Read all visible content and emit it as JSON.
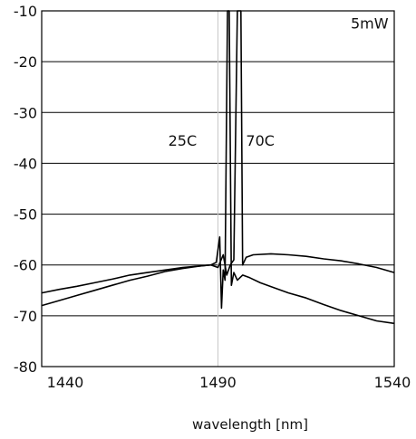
{
  "chart_data": {
    "type": "line",
    "title": "",
    "xlabel": "wavelength [nm]",
    "ylabel": "",
    "xlim": [
      1440,
      1540
    ],
    "ylim": [
      -80,
      -10
    ],
    "x_ticks": [
      1440,
      1490,
      1540
    ],
    "y_ticks": [
      -10,
      -20,
      -30,
      -40,
      -50,
      -60,
      -70,
      -80
    ],
    "grid": true,
    "reference_line_x": 1490,
    "annotations": [
      {
        "text": "5mW",
        "x": 1533,
        "y": -13.5
      },
      {
        "text": "25C",
        "x": 1484,
        "y": -36.5
      },
      {
        "text": "70C",
        "x": 1502,
        "y": -36.5
      }
    ],
    "series": [
      {
        "points": [
          [
            1440,
            -68.0
          ],
          [
            1445,
            -67.0
          ],
          [
            1450,
            -66.0
          ],
          [
            1455,
            -65.0
          ],
          [
            1460,
            -64.0
          ],
          [
            1465,
            -63.0
          ],
          [
            1470,
            -62.2
          ],
          [
            1475,
            -61.3
          ],
          [
            1480,
            -60.7
          ],
          [
            1485,
            -60.2
          ],
          [
            1488,
            -60.0
          ],
          [
            1489.5,
            -59.5
          ],
          [
            1490.5,
            -54.5
          ],
          [
            1491,
            -68.5
          ],
          [
            1491.5,
            -61.0
          ],
          [
            1492,
            -63.0
          ],
          [
            1492.7,
            -10.0
          ],
          [
            1493.2,
            -10.0
          ],
          [
            1493.8,
            -64.0
          ],
          [
            1494.5,
            -61.5
          ],
          [
            1495.5,
            -63.0
          ],
          [
            1497,
            -62.0
          ],
          [
            1499,
            -62.5
          ],
          [
            1502,
            -63.5
          ],
          [
            1506,
            -64.5
          ],
          [
            1510,
            -65.5
          ],
          [
            1515,
            -66.5
          ],
          [
            1520,
            -67.8
          ],
          [
            1525,
            -69.0
          ],
          [
            1530,
            -70.0
          ],
          [
            1535,
            -71.0
          ],
          [
            1540,
            -71.5
          ]
        ]
      },
      {
        "points": [
          [
            1440,
            -65.5
          ],
          [
            1445,
            -64.8
          ],
          [
            1450,
            -64.2
          ],
          [
            1455,
            -63.5
          ],
          [
            1460,
            -62.8
          ],
          [
            1465,
            -62.0
          ],
          [
            1470,
            -61.5
          ],
          [
            1475,
            -61.0
          ],
          [
            1480,
            -60.5
          ],
          [
            1485,
            -60.2
          ],
          [
            1488,
            -60.0
          ],
          [
            1490,
            -60.5
          ],
          [
            1491.5,
            -58.0
          ],
          [
            1492.5,
            -62.0
          ],
          [
            1493.5,
            -60.0
          ],
          [
            1494.5,
            -59.0
          ],
          [
            1495.5,
            -10.0
          ],
          [
            1496.5,
            -10.0
          ],
          [
            1497,
            -60.0
          ],
          [
            1498,
            -58.5
          ],
          [
            1500,
            -58.0
          ],
          [
            1505,
            -57.8
          ],
          [
            1510,
            -58.0
          ],
          [
            1515,
            -58.3
          ],
          [
            1520,
            -58.8
          ],
          [
            1525,
            -59.2
          ],
          [
            1530,
            -59.8
          ],
          [
            1535,
            -60.5
          ],
          [
            1540,
            -61.5
          ]
        ]
      }
    ]
  }
}
